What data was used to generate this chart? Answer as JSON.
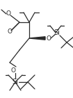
{
  "bg_color": "#ffffff",
  "line_color": "#2a2a2a",
  "lw": 0.9,
  "fs": 6.5,
  "fs_small": 5.5,
  "fs_si": 7.0
}
